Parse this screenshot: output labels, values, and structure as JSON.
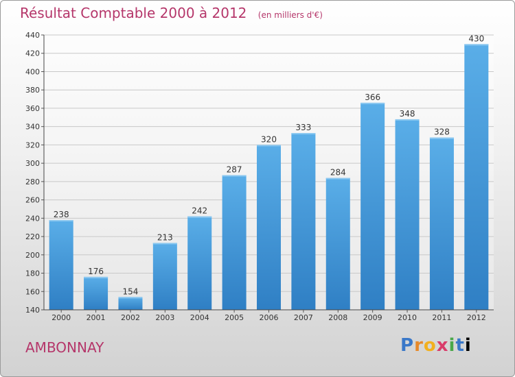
{
  "chart_data": {
    "type": "bar",
    "title": "Résultat Comptable 2000 à 2012",
    "subtitle": "(en milliers d'€)",
    "categories": [
      "2000",
      "2001",
      "2002",
      "2003",
      "2004",
      "2005",
      "2006",
      "2007",
      "2008",
      "2009",
      "2010",
      "2011",
      "2012"
    ],
    "values": [
      238,
      176,
      154,
      213,
      242,
      287,
      320,
      333,
      284,
      366,
      348,
      328,
      430
    ],
    "ylim": [
      140,
      440
    ],
    "yticks": [
      140,
      160,
      180,
      200,
      220,
      240,
      260,
      280,
      300,
      320,
      340,
      360,
      380,
      400,
      420,
      440
    ],
    "grid": true,
    "xlabel": "",
    "ylabel": ""
  },
  "place_name": "AMBONNAY",
  "brand": "Proxiti",
  "colors": {
    "accent": "#b5366a",
    "bar": "#4a9ee0"
  }
}
